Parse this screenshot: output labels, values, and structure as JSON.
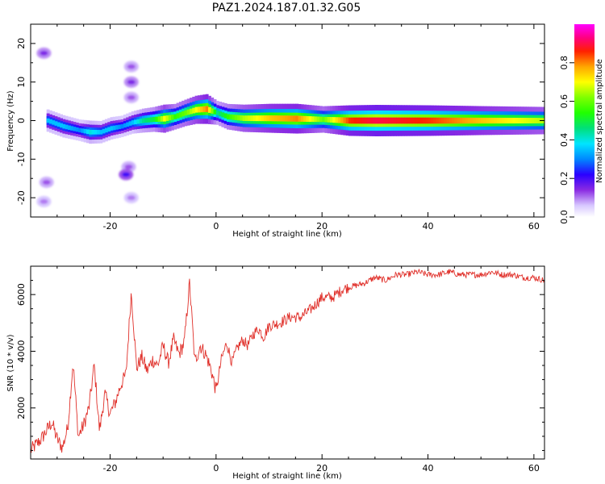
{
  "figure_title": "PAZ1.2024.187.01.32.G05",
  "chart_data": [
    {
      "type": "heatmap",
      "xlabel": "Height of straight line (km)",
      "ylabel": "Frequency (Hz)",
      "xlim": [
        -35,
        62
      ],
      "ylim": [
        -25,
        25
      ],
      "xticks": [
        -20,
        0,
        20,
        40,
        60
      ],
      "yticks": [
        -20,
        -10,
        0,
        10,
        20
      ],
      "colorbar": {
        "label": "Normalized spectral amplitude",
        "range": [
          0,
          1
        ],
        "ticks": [
          "0.0",
          "0.2",
          "0.4",
          "0.6",
          "0.8"
        ],
        "colormap": "gist_ncar"
      },
      "ridge": {
        "x": [
          -32,
          -29,
          -26,
          -24,
          -22,
          -20,
          -18,
          -16,
          -14,
          -12,
          -10,
          -8,
          -6,
          -4,
          -2,
          0,
          2,
          5,
          10,
          15,
          20,
          25,
          30,
          40,
          50,
          62
        ],
        "frequency_hz": [
          0,
          -1.5,
          -2.5,
          -3,
          -3,
          -2,
          -1.5,
          -0.5,
          0,
          0.3,
          0.5,
          1,
          2,
          2.8,
          3,
          2,
          1,
          0.6,
          0.6,
          0.5,
          0.3,
          0,
          0,
          0,
          0,
          0
        ],
        "amplitude": [
          0.35,
          0.35,
          0.3,
          0.4,
          0.35,
          0.35,
          0.3,
          0.35,
          0.45,
          0.5,
          0.7,
          0.55,
          0.6,
          0.7,
          0.8,
          0.45,
          0.55,
          0.65,
          0.75,
          0.8,
          0.6,
          0.85,
          0.9,
          0.85,
          0.75,
          0.65
        ]
      },
      "blobs": [
        {
          "x": -32.5,
          "f": 17.5,
          "amp": 0.15
        },
        {
          "x": -32,
          "f": -16,
          "amp": 0.12
        },
        {
          "x": -32.5,
          "f": -21,
          "amp": 0.1
        },
        {
          "x": -16,
          "f": 14,
          "amp": 0.12
        },
        {
          "x": -16,
          "f": 10,
          "amp": 0.15
        },
        {
          "x": -16,
          "f": 6,
          "amp": 0.12
        },
        {
          "x": -16.5,
          "f": -12,
          "amp": 0.12
        },
        {
          "x": -17,
          "f": -14,
          "amp": 0.2
        },
        {
          "x": -16,
          "f": -20,
          "amp": 0.1
        }
      ]
    },
    {
      "type": "line",
      "xlabel": "Height of straight line (km)",
      "ylabel": "SNR (10 * v/v)",
      "xlim": [
        -35,
        62
      ],
      "ylim": [
        200,
        7000
      ],
      "xticks": [
        -20,
        0,
        20,
        40,
        60
      ],
      "yticks": [
        2000,
        4000,
        6000
      ],
      "series": [
        {
          "color": "#e0302a",
          "x": [
            -35,
            -33,
            -31,
            -30,
            -29,
            -28,
            -27,
            -26,
            -25,
            -24,
            -23,
            -22,
            -21,
            -20,
            -19,
            -18,
            -17,
            -16,
            -15,
            -14,
            -13,
            -12,
            -11,
            -10,
            -9,
            -8,
            -7,
            -6,
            -5,
            -4,
            -3,
            -2,
            -1,
            0,
            1,
            2,
            3,
            4,
            5,
            6,
            7,
            8,
            9,
            10,
            12,
            14,
            16,
            18,
            20,
            22,
            24,
            26,
            28,
            30,
            32,
            34,
            36,
            38,
            40,
            42,
            44,
            46,
            48,
            50,
            52,
            54,
            56,
            58,
            60,
            62
          ],
          "y": [
            500,
            900,
            1500,
            900,
            600,
            1300,
            3600,
            1000,
            1400,
            2000,
            3500,
            1200,
            2500,
            1800,
            2200,
            2800,
            3200,
            6100,
            3400,
            3800,
            3300,
            3700,
            3500,
            4200,
            3600,
            4400,
            3900,
            4300,
            6400,
            3600,
            4200,
            3900,
            3400,
            2600,
            3700,
            4300,
            3600,
            4100,
            4400,
            4200,
            4600,
            4800,
            4500,
            4900,
            5000,
            5200,
            5200,
            5500,
            5900,
            5900,
            6200,
            6300,
            6400,
            6600,
            6500,
            6700,
            6700,
            6800,
            6700,
            6700,
            6800,
            6700,
            6700,
            6700,
            6800,
            6700,
            6700,
            6600,
            6600,
            6500
          ]
        }
      ]
    }
  ]
}
